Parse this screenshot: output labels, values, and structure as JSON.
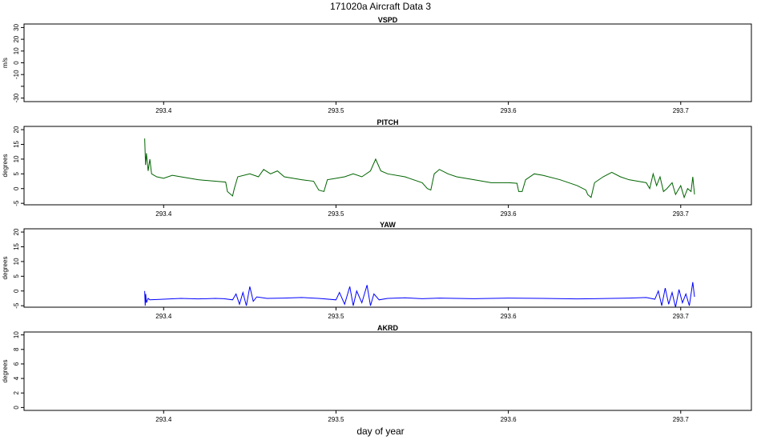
{
  "title": "171020a   Aircraft Data 3",
  "xlabel": "day of year",
  "chart_data": [
    {
      "type": "line",
      "title": "VSPD",
      "ylabel": "m/s",
      "xlim": [
        293.319,
        293.741
      ],
      "xticks": [
        293.4,
        293.5,
        293.6,
        293.7
      ],
      "ylim": [
        -33,
        33
      ],
      "yticks": [
        -30,
        {
          "value": -20,
          "label": null
        },
        -10,
        0,
        10,
        20,
        30
      ]
    },
    {
      "type": "line",
      "title": "PITCH",
      "ylabel": "degrees",
      "xlim": [
        293.319,
        293.741
      ],
      "xticks": [
        293.4,
        293.5,
        293.6,
        293.7
      ],
      "ylim": [
        -5.5,
        21.1
      ],
      "yticks": [
        -5,
        0,
        5,
        10,
        15,
        20
      ],
      "series": [
        {
          "color": "#006400",
          "x": [
            293.389,
            293.3895,
            293.39,
            293.391,
            293.392,
            293.393,
            293.396,
            293.4,
            293.405,
            293.41,
            293.42,
            293.43,
            293.436,
            293.437,
            293.44,
            293.441,
            293.443,
            293.45,
            293.455,
            293.458,
            293.462,
            293.466,
            293.47,
            293.48,
            293.487,
            293.49,
            293.493,
            293.495,
            293.5,
            293.505,
            293.51,
            293.515,
            293.52,
            293.523,
            293.526,
            293.53,
            293.54,
            293.55,
            293.553,
            293.555,
            293.557,
            293.56,
            293.565,
            293.57,
            293.58,
            293.59,
            293.6,
            293.605,
            293.606,
            293.608,
            293.61,
            293.615,
            293.62,
            293.63,
            293.64,
            293.645,
            293.646,
            293.648,
            293.65,
            293.655,
            293.66,
            293.665,
            293.67,
            293.675,
            293.68,
            293.682,
            293.684,
            293.686,
            293.688,
            293.69,
            293.692,
            293.695,
            293.697,
            293.7,
            293.702,
            293.704,
            293.706,
            293.707,
            293.708
          ],
          "values": [
            17,
            8,
            12,
            6,
            10,
            5,
            4,
            3.5,
            4.5,
            4,
            3,
            2.5,
            2.2,
            -1,
            -2.5,
            0,
            4,
            5,
            4,
            6.5,
            5,
            6,
            4,
            3,
            2.5,
            -0.5,
            -1,
            3,
            3.5,
            4,
            5,
            4,
            6,
            10,
            6,
            5,
            4,
            2,
            0,
            -0.5,
            5,
            6.5,
            5,
            4,
            3,
            2,
            2,
            1.8,
            -1,
            -1,
            3,
            5,
            4.5,
            3,
            1,
            -0.5,
            -2,
            -3,
            2,
            4,
            5.5,
            4,
            3,
            2.5,
            2,
            0,
            5,
            1,
            4,
            -1,
            0,
            2,
            -2,
            1,
            -3,
            0,
            -1,
            4,
            -2
          ]
        }
      ]
    },
    {
      "type": "line",
      "title": "YAW",
      "ylabel": "degrees",
      "xlim": [
        293.319,
        293.741
      ],
      "xticks": [
        293.4,
        293.5,
        293.6,
        293.7
      ],
      "ylim": [
        -5.5,
        21.1
      ],
      "yticks": [
        -5,
        0,
        5,
        10,
        15,
        20
      ],
      "series": [
        {
          "color": "#0000ff",
          "x": [
            293.389,
            293.3893,
            293.3896,
            293.39,
            293.391,
            293.392,
            293.4,
            293.41,
            293.42,
            293.43,
            293.435,
            293.44,
            293.442,
            293.444,
            293.446,
            293.448,
            293.45,
            293.452,
            293.454,
            293.46,
            293.47,
            293.48,
            293.49,
            293.5,
            293.502,
            293.505,
            293.508,
            293.51,
            293.512,
            293.515,
            293.518,
            293.52,
            293.522,
            293.525,
            293.53,
            293.54,
            293.55,
            293.56,
            293.57,
            293.58,
            293.6,
            293.62,
            293.64,
            293.65,
            293.66,
            293.67,
            293.68,
            293.685,
            293.687,
            293.689,
            293.691,
            293.693,
            293.695,
            293.697,
            293.699,
            293.701,
            293.703,
            293.705,
            293.707,
            293.708
          ],
          "values": [
            0,
            -5,
            -1,
            -4,
            -2.5,
            -3,
            -2.8,
            -2.5,
            -2.7,
            -2.5,
            -2.6,
            -3,
            -1,
            -4.5,
            -0.5,
            -5,
            1.5,
            -3.5,
            -2,
            -2.5,
            -2.4,
            -2.2,
            -2.5,
            -3,
            -0.5,
            -4.5,
            1.5,
            -5,
            0,
            -4,
            2,
            -5,
            -1,
            -3,
            -2.5,
            -2.3,
            -2.6,
            -2.4,
            -2.5,
            -2.6,
            -2.4,
            -2.5,
            -2.7,
            -2.6,
            -2.5,
            -2.4,
            -2.2,
            -2.8,
            0,
            -5,
            1,
            -4.5,
            -0.5,
            -5.5,
            0.5,
            -4,
            -1,
            -5,
            3,
            -2
          ]
        }
      ]
    },
    {
      "type": "line",
      "title": "AKRD",
      "ylabel": "degrees",
      "xlim": [
        293.319,
        293.741
      ],
      "xticks": [
        293.4,
        293.5,
        293.6,
        293.7
      ],
      "ylim": [
        -0.4,
        10.4
      ],
      "yticks": [
        0,
        2,
        4,
        6,
        8,
        10
      ]
    }
  ]
}
